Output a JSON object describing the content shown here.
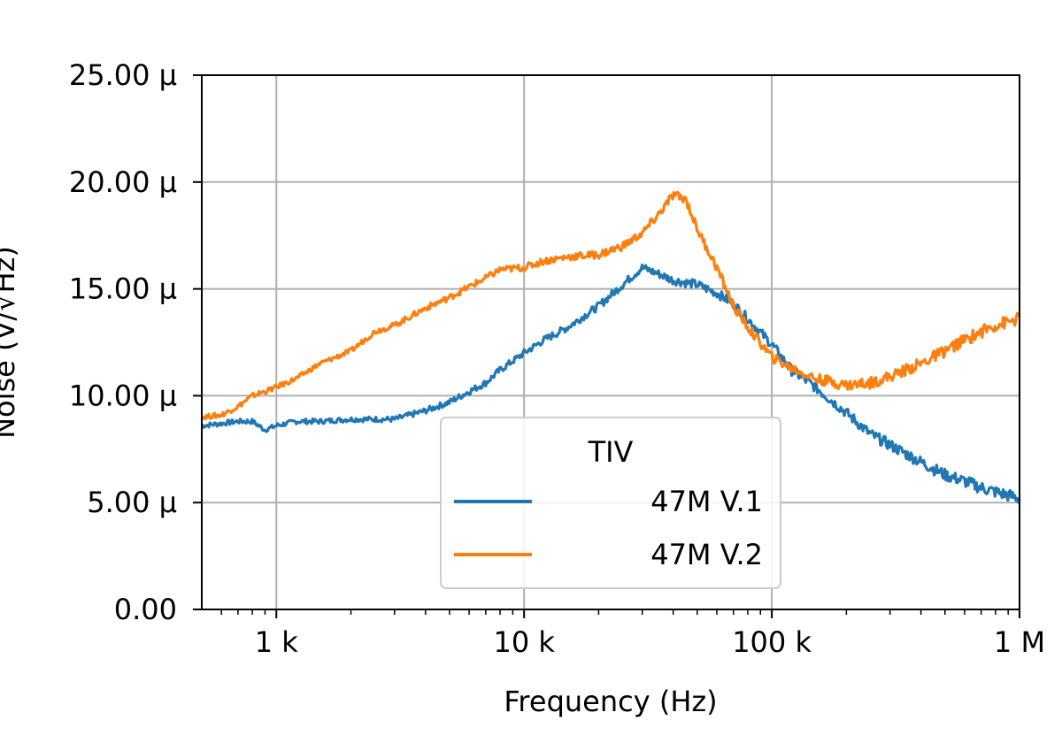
{
  "chart_data": {
    "type": "line",
    "title": "",
    "xlabel": "Frequency (Hz)",
    "ylabel": "Noise (V/√Hz)",
    "x_scale": "log",
    "xlim": [
      500,
      1000000
    ],
    "ylim": [
      0,
      2.5e-05
    ],
    "grid": true,
    "x_ticks": [
      {
        "value": 1000,
        "label": "1 k"
      },
      {
        "value": 10000,
        "label": "10 k"
      },
      {
        "value": 100000,
        "label": "100 k"
      },
      {
        "value": 1000000,
        "label": "1 M"
      }
    ],
    "y_ticks": [
      {
        "value": 0,
        "label": "0.00"
      },
      {
        "value": 5e-06,
        "label": "5.00 µ"
      },
      {
        "value": 1e-05,
        "label": "10.00 µ"
      },
      {
        "value": 1.5e-05,
        "label": "15.00 µ"
      },
      {
        "value": 2e-05,
        "label": "20.00 µ"
      },
      {
        "value": 2.5e-05,
        "label": "25.00 µ"
      }
    ],
    "legend": {
      "title": "TIV",
      "position": "lower center"
    },
    "series": [
      {
        "name": "47M V.1",
        "color": "#1f77b4",
        "x": [
          500,
          600,
          700,
          800,
          900,
          1000,
          1200,
          1500,
          2000,
          2500,
          3000,
          4000,
          5000,
          6000,
          7000,
          8000,
          10000,
          12000,
          15000,
          20000,
          25000,
          30000,
          35000,
          40000,
          50000,
          60000,
          70000,
          80000,
          100000,
          120000,
          150000,
          200000,
          250000,
          300000,
          400000,
          500000,
          600000,
          700000,
          800000,
          1000000
        ],
        "y": [
          8.6e-06,
          8.7e-06,
          8.8e-06,
          8.8e-06,
          8.4e-06,
          8.6e-06,
          8.8e-06,
          8.8e-06,
          8.9e-06,
          8.9e-06,
          8.9e-06,
          9.3e-06,
          9.7e-06,
          1.02e-05,
          1.06e-05,
          1.12e-05,
          1.2e-05,
          1.26e-05,
          1.32e-05,
          1.42e-05,
          1.52e-05,
          1.6e-05,
          1.57e-05,
          1.54e-05,
          1.52e-05,
          1.48e-05,
          1.43e-05,
          1.36e-05,
          1.24e-05,
          1.12e-05,
          1.04e-05,
          9.2e-06,
          8.2e-06,
          7.7e-06,
          6.9e-06,
          6.3e-06,
          6e-06,
          5.7e-06,
          5.5e-06,
          5.2e-06
        ]
      },
      {
        "name": "47M V.2",
        "color": "#ff7f0e",
        "x": [
          500,
          600,
          700,
          800,
          900,
          1000,
          1200,
          1500,
          2000,
          2500,
          3000,
          4000,
          5000,
          6000,
          7000,
          8000,
          10000,
          12000,
          15000,
          20000,
          25000,
          30000,
          35000,
          40000,
          45000,
          50000,
          60000,
          70000,
          80000,
          100000,
          120000,
          150000,
          200000,
          250000,
          300000,
          400000,
          500000,
          600000,
          700000,
          800000,
          1000000
        ],
        "y": [
          9e-06,
          9.1e-06,
          9.5e-06,
          1e-05,
          1.02e-05,
          1.04e-05,
          1.08e-05,
          1.15e-05,
          1.21e-05,
          1.3e-05,
          1.33e-05,
          1.41e-05,
          1.46e-05,
          1.51e-05,
          1.55e-05,
          1.59e-05,
          1.6e-05,
          1.63e-05,
          1.65e-05,
          1.66e-05,
          1.7e-05,
          1.76e-05,
          1.85e-05,
          1.94e-05,
          1.92e-05,
          1.78e-05,
          1.6e-05,
          1.42e-05,
          1.32e-05,
          1.18e-05,
          1.13e-05,
          1.08e-05,
          1.05e-05,
          1.06e-05,
          1.09e-05,
          1.15e-05,
          1.21e-05,
          1.26e-05,
          1.3e-05,
          1.33e-05,
          1.36e-05
        ]
      }
    ]
  }
}
